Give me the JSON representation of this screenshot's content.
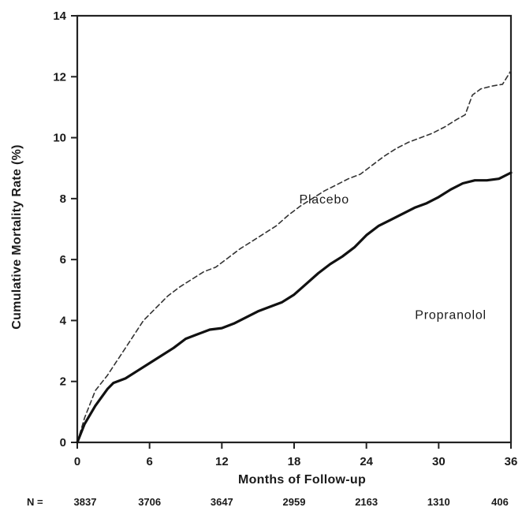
{
  "chart_data": {
    "type": "line",
    "title": "",
    "xlabel": "Months of Follow-up",
    "ylabel": "Cumulative Mortality Rate (%)",
    "xlim": [
      0,
      36
    ],
    "ylim": [
      0,
      14
    ],
    "x_ticks": [
      0,
      6,
      12,
      18,
      24,
      30,
      36
    ],
    "y_ticks": [
      0,
      2,
      4,
      6,
      8,
      10,
      12,
      14
    ],
    "grid": false,
    "legend": "none",
    "series": [
      {
        "name": "Placebo",
        "style": "dashed",
        "color": "#333333",
        "x": [
          0,
          0.6,
          1.5,
          2.5,
          3.5,
          4.5,
          5.5,
          6.5,
          7.5,
          8.5,
          9.5,
          10.5,
          11.5,
          12.5,
          13.5,
          14.5,
          15.5,
          16.5,
          17.5,
          18.5,
          19.5,
          20.5,
          21.5,
          22.5,
          23.5,
          24.5,
          25.5,
          26.5,
          27.5,
          28.5,
          29.5,
          30.5,
          31.5,
          32.2,
          32.8,
          33.5,
          34.5,
          35.3,
          36
        ],
        "y": [
          0,
          0.8,
          1.7,
          2.2,
          2.8,
          3.4,
          4.0,
          4.4,
          4.8,
          5.1,
          5.35,
          5.6,
          5.75,
          6.05,
          6.35,
          6.6,
          6.85,
          7.1,
          7.45,
          7.75,
          8.0,
          8.25,
          8.45,
          8.65,
          8.8,
          9.1,
          9.4,
          9.65,
          9.85,
          10.0,
          10.15,
          10.35,
          10.6,
          10.75,
          11.4,
          11.6,
          11.7,
          11.75,
          12.2
        ]
      },
      {
        "name": "Propranolol",
        "style": "solid",
        "color": "#111111",
        "x": [
          0,
          0.6,
          1.5,
          2.5,
          3.0,
          4.0,
          5.0,
          6.0,
          7.0,
          8.0,
          9.0,
          10.0,
          11.0,
          12.0,
          13.0,
          14.0,
          15.0,
          16.0,
          17.0,
          18.0,
          19.0,
          20.0,
          21.0,
          22.0,
          23.0,
          24.0,
          25.0,
          26.0,
          27.0,
          28.0,
          29.0,
          30.0,
          31.0,
          32.0,
          33.0,
          34.0,
          35.0,
          36.0
        ],
        "y": [
          0,
          0.6,
          1.2,
          1.75,
          1.95,
          2.1,
          2.35,
          2.6,
          2.85,
          3.1,
          3.4,
          3.55,
          3.7,
          3.75,
          3.9,
          4.1,
          4.3,
          4.45,
          4.6,
          4.85,
          5.2,
          5.55,
          5.85,
          6.1,
          6.4,
          6.8,
          7.1,
          7.3,
          7.5,
          7.7,
          7.85,
          8.05,
          8.3,
          8.5,
          8.6,
          8.6,
          8.65,
          8.85
        ]
      }
    ],
    "annotations": [
      {
        "text": "Placebo",
        "x": 20.5,
        "y": 8.0
      },
      {
        "text": "Propranolol",
        "x": 31.0,
        "y": 4.2
      }
    ],
    "n_at_risk": {
      "label": "N =",
      "x": [
        0,
        6,
        12,
        18,
        24,
        30,
        36
      ],
      "values": [
        "3837",
        "3706",
        "3647",
        "2959",
        "2163",
        "1310",
        "406"
      ]
    }
  }
}
